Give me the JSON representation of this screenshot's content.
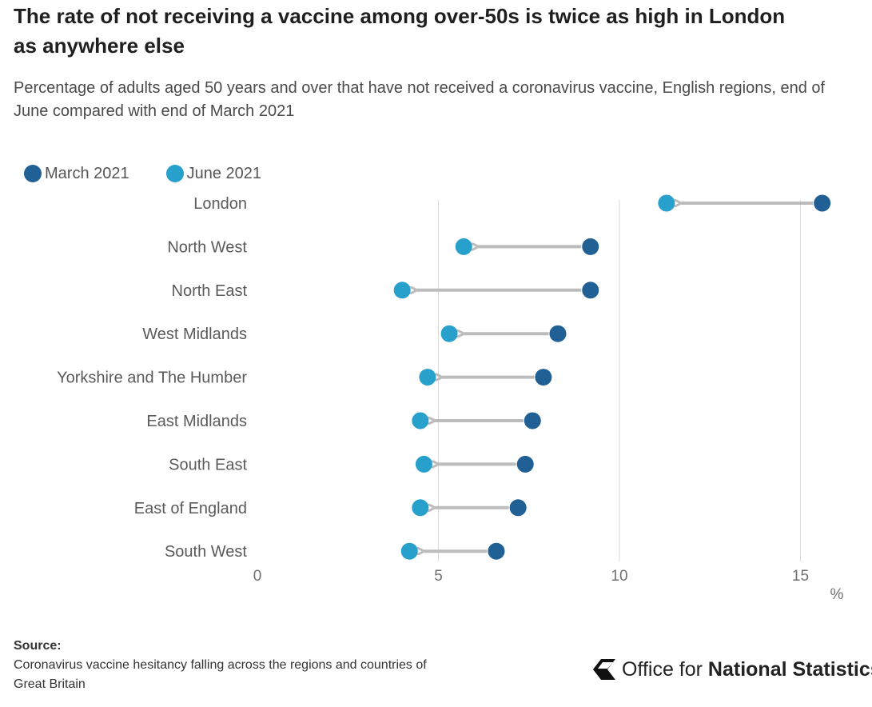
{
  "title": "The rate of not receiving a vaccine among over-50s is twice as high in London as anywhere else",
  "subtitle": "Percentage of adults aged 50 years and over that have not received a coronavirus vaccine, English regions, end of June compared with end of March 2021",
  "colors": {
    "march": "#206095",
    "june": "#27a0cc",
    "arrow": "#bcbcbc",
    "grid": "#d9d9d9",
    "axis_text": "#707070"
  },
  "chart_data": {
    "type": "scatter",
    "subtype": "dot-arrow",
    "title": "The rate of not receiving a vaccine among over-50s is twice as high in London as anywhere else",
    "categories": [
      "London",
      "North West",
      "North East",
      "West Midlands",
      "Yorkshire and The Humber",
      "East Midlands",
      "South East",
      "East of England",
      "South West"
    ],
    "series": [
      {
        "name": "March 2021",
        "values": [
          15.6,
          9.2,
          9.2,
          8.3,
          7.9,
          7.6,
          7.4,
          7.2,
          6.6
        ]
      },
      {
        "name": "June 2021",
        "values": [
          11.3,
          5.7,
          4.0,
          5.3,
          4.7,
          4.5,
          4.6,
          4.5,
          4.2
        ]
      }
    ],
    "xlim": [
      0,
      16
    ],
    "xticks": [
      0,
      5,
      10,
      15
    ],
    "xtick_labels": [
      "0",
      "5",
      "10",
      "15"
    ],
    "xlabel": "%",
    "ylabel": "",
    "grid": true,
    "legend_position": "top-left"
  },
  "source": {
    "heading": "Source:",
    "text": "Coronavirus vaccine hesitancy falling across the regions and countries of Great Britain"
  },
  "logo": {
    "icon": "ons-logo-icon",
    "text_regular": "Office for",
    "text_bold": "National Statistics"
  }
}
